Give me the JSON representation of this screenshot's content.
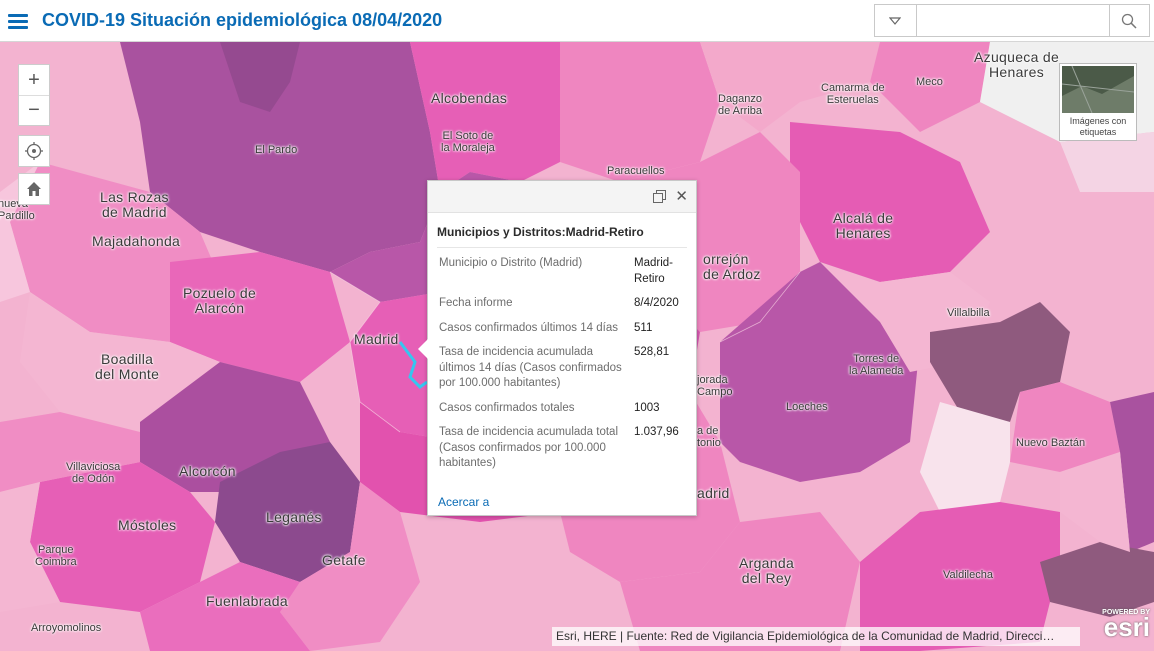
{
  "header": {
    "title": "COVID-19 Situación epidemiológica 08/04/2020",
    "search_value": "",
    "search_placeholder": ""
  },
  "controls": {
    "zoom_in": "+",
    "zoom_out": "−",
    "locate_icon": "crosshair-icon",
    "home_icon": "home-icon"
  },
  "basemap_toggle": {
    "label": "Imágenes con etiquetas"
  },
  "places": [
    {
      "id": "el-pardo",
      "name": "El Pardo"
    },
    {
      "id": "alcobendas",
      "name": "Alcobendas"
    },
    {
      "id": "el-soto",
      "name": "El Soto de\nla Moraleja"
    },
    {
      "id": "paracuellos",
      "name": "Paracuellos"
    },
    {
      "id": "daganzo",
      "name": "Daganzo\nde Arriba"
    },
    {
      "id": "camarma",
      "name": "Camarma de\nEsteruelas"
    },
    {
      "id": "meco",
      "name": "Meco"
    },
    {
      "id": "azuqueca",
      "name": "Azuqueca de\nHenares"
    },
    {
      "id": "las-rozas",
      "name": "Las Rozas\nde Madrid"
    },
    {
      "id": "majadahonda",
      "name": "Majadahonda"
    },
    {
      "id": "villanueva",
      "name": "nueva\nPardillo"
    },
    {
      "id": "pozuelo",
      "name": "Pozuelo de\nAlarcón"
    },
    {
      "id": "madrid",
      "name": "Madrid"
    },
    {
      "id": "boadilla",
      "name": "Boadilla\ndel Monte"
    },
    {
      "id": "alcala",
      "name": "Alcalá de\nHenares"
    },
    {
      "id": "torrejon",
      "name": "orrejón\nde Ardoz"
    },
    {
      "id": "villalbilla",
      "name": "Villalbilla"
    },
    {
      "id": "torres",
      "name": "Torres de\nla Alameda"
    },
    {
      "id": "mejorada",
      "name": "jorada\nCampo"
    },
    {
      "id": "loeches",
      "name": "Loeches"
    },
    {
      "id": "sanfernando",
      "name": "a de\ntonio"
    },
    {
      "id": "nuevo-baztan",
      "name": "Nuevo Baztán"
    },
    {
      "id": "rivas",
      "name": "adrid"
    },
    {
      "id": "villaviciosa",
      "name": "Villaviciosa\nde Odón"
    },
    {
      "id": "alcorcon",
      "name": "Alcorcón"
    },
    {
      "id": "leganes",
      "name": "Leganés"
    },
    {
      "id": "mostoles",
      "name": "Móstoles"
    },
    {
      "id": "getafe",
      "name": "Getafe"
    },
    {
      "id": "parque-coimbra",
      "name": "Parque\nCoimbra"
    },
    {
      "id": "arganda",
      "name": "Arganda\ndel Rey"
    },
    {
      "id": "valdilecha",
      "name": "Valdilecha"
    },
    {
      "id": "fuenlabrada",
      "name": "Fuenlabrada"
    },
    {
      "id": "arroyomolinos",
      "name": "Arroyomolinos"
    }
  ],
  "popup": {
    "title": "Municipios y Distritos:Madrid-Retiro",
    "fields": [
      {
        "key": "Municipio o Distrito (Madrid)",
        "value": "Madrid-\nRetiro"
      },
      {
        "key": "Fecha informe",
        "value": "8/4/2020"
      },
      {
        "key": "Casos confirmados últimos 14 días",
        "value": "511"
      },
      {
        "key": "Tasa de incidencia acumulada últimos 14 días (Casos confirmados por 100.000 habitantes)",
        "value": "528,81"
      },
      {
        "key": "Casos confirmados totales",
        "value": "1003"
      },
      {
        "key": "Tasa de incidencia acumulada total (Casos confirmados por 100.000 habitantes)",
        "value": "1.037,96"
      }
    ],
    "zoom_to": "Acercar a"
  },
  "attribution": "Esri, HERE | Fuente: Red de Vigilancia Epidemiológica de la Comunidad de Madrid, Direcci…",
  "esri": {
    "powered_by": "POWERED BY",
    "logo": "esri"
  },
  "colors": {
    "brand": "#0a6bb5",
    "light_pink": "#f4b6d2",
    "pink": "#ef86c0",
    "magenta": "#e55cb4",
    "purple": "#a9529f",
    "dark_purple": "#8f5a7e"
  }
}
